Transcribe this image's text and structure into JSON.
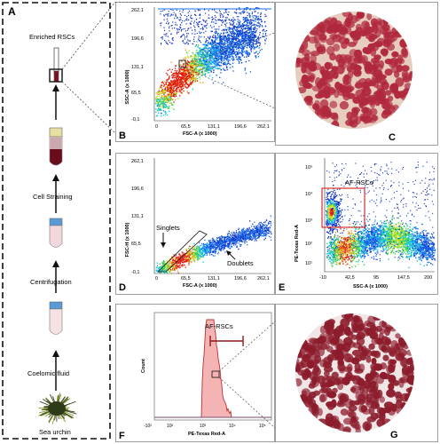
{
  "panel_letters": {
    "a": "A",
    "b": "B",
    "c": "C",
    "d": "D",
    "e": "E",
    "f": "F",
    "g": "G"
  },
  "panel_a": {
    "steps": [
      "Enriched RSCs",
      "Cell Straining",
      "Centrifugation",
      "Coelomic fluid",
      "Sea urchin"
    ]
  },
  "panel_b": {
    "ylabel": "SSC-A (x 1000)",
    "xlabel": "FSC-A (x 1000)",
    "yticks": [
      "262,1",
      "196,6",
      "131,1",
      "65,5",
      "-0,1"
    ],
    "xticks": [
      "65,5",
      "131,1",
      "196,6",
      "262,1"
    ],
    "x0": "0"
  },
  "panel_d": {
    "ylabel": "FSC-H (x 1000)",
    "xlabel": "FSC-A (x 1000)",
    "yticks": [
      "262,1",
      "196,6",
      "131,1",
      "65,5",
      "-0,1"
    ],
    "xticks": [
      "65,5",
      "131,1",
      "196,6",
      "262,1"
    ],
    "x0": "0",
    "annot_singlets": "Singlets",
    "annot_doublets": "Doublets"
  },
  "panel_e": {
    "ylabel": "PE-Texas Red-A",
    "xlabel": "SSC-A (x 1000)",
    "yticks": [
      "10⁵",
      "10⁴",
      "10³",
      "10²",
      "10¹"
    ],
    "xticks": [
      "-10",
      "42,5",
      "95",
      "147,5",
      "200"
    ],
    "gate_label": "AF-RSCs"
  },
  "panel_f": {
    "ylabel": "Count",
    "xlabel": "PE-Texas Red-A",
    "xticks": [
      "-10²",
      "10²",
      "10³",
      "10⁴",
      "10⁵"
    ],
    "gate_label": "AF-RSCs"
  },
  "colors": {
    "accent_red": "#8b1a1a",
    "cells_c": "#b0283c",
    "cells_g": "#8c1c2c",
    "hist_fill": "#f4b4b4"
  }
}
